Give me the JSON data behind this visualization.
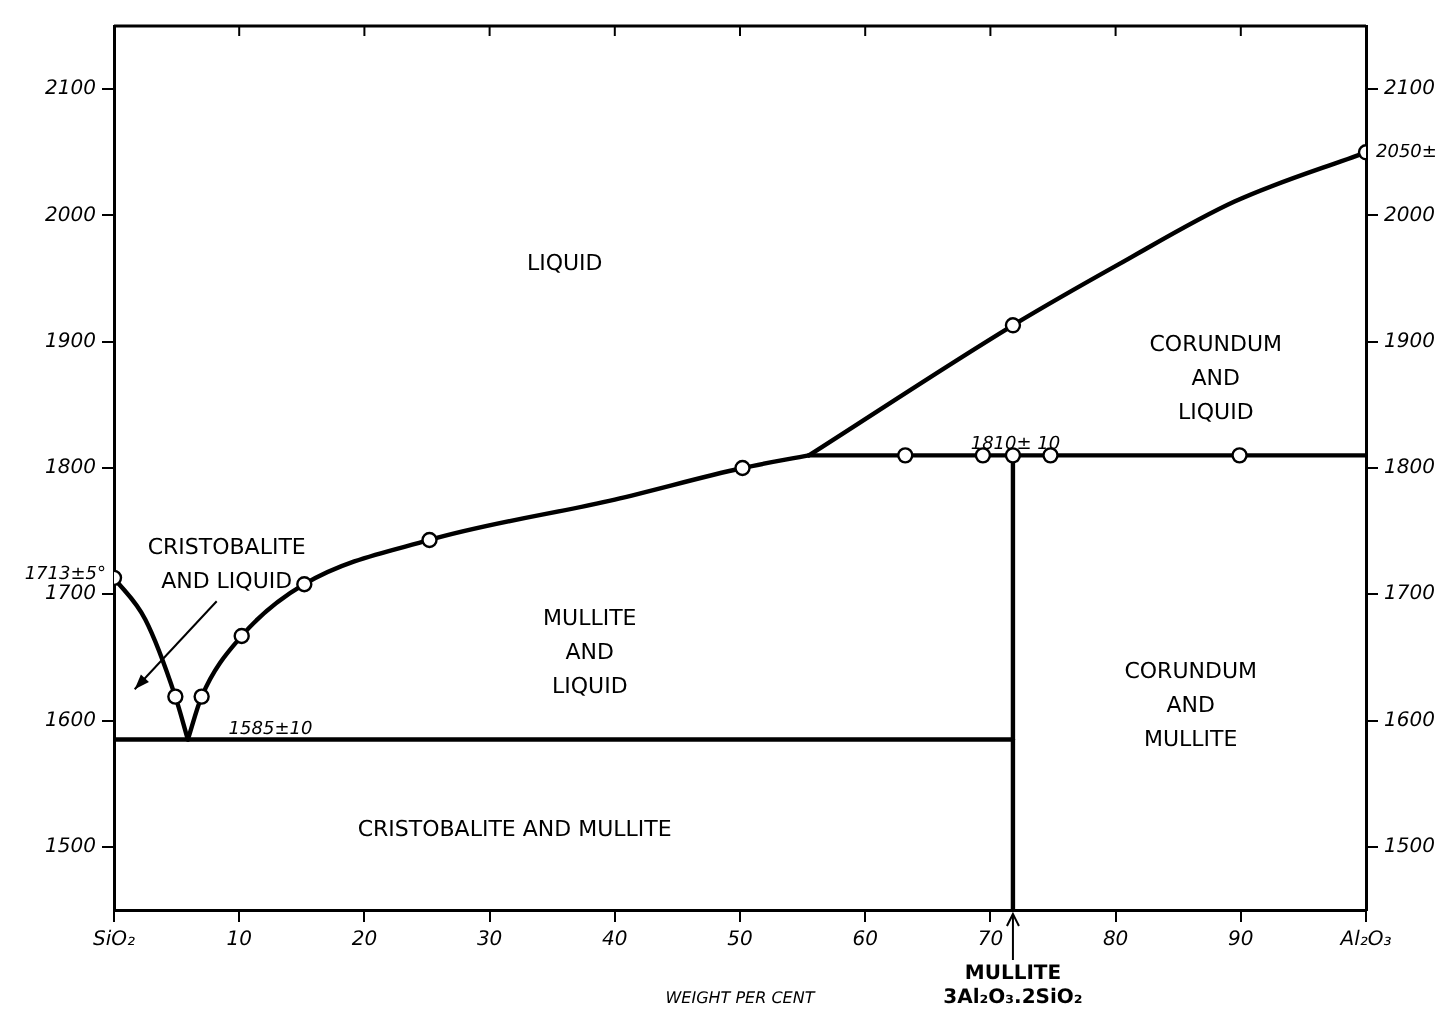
{
  "chart_data": {
    "type": "line",
    "xlabel": "WEIGHT PER CENT",
    "xlim": [
      0,
      100
    ],
    "xticks": [
      {
        "value": 0,
        "label": "SiO₂"
      },
      10,
      20,
      30,
      40,
      50,
      60,
      70,
      80,
      90,
      {
        "value": 100,
        "label": "Al₂O₃"
      }
    ],
    "ylim": [
      1450,
      2150
    ],
    "yticks": [
      1500,
      1600,
      1700,
      1800,
      1900,
      2000,
      2100
    ],
    "y2lim": [
      1450,
      2150
    ],
    "y2ticks": [
      1500,
      1600,
      1700,
      1800,
      1900,
      2000,
      2100
    ],
    "grid": false,
    "legend": false,
    "line_style": "solid",
    "series": [
      {
        "color": "#000000",
        "marker": "none",
        "x": [
          0,
          2.5,
          4.9,
          5.9
        ],
        "values": [
          1713,
          1680,
          1619,
          1585
        ]
      },
      {
        "color": "#000000",
        "marker": "none",
        "x": [
          5.9,
          7,
          10.2,
          15.2,
          25.2,
          40,
          50.2,
          55.5
        ],
        "values": [
          1585,
          1619,
          1667,
          1708,
          1743,
          1775,
          1800,
          1810
        ]
      },
      {
        "color": "#000000",
        "marker": "none",
        "x": [
          55.5,
          71.8,
          80.2,
          89.5,
          100
        ],
        "values": [
          1810,
          1913,
          1961,
          2011,
          2050
        ]
      },
      {
        "color": "#000000",
        "marker": "none",
        "x": [
          55.5,
          100
        ],
        "values": [
          1810,
          1810
        ]
      },
      {
        "color": "#000000",
        "marker": "none",
        "x": [
          0,
          71.8
        ],
        "values": [
          1585,
          1585
        ]
      },
      {
        "color": "#000000",
        "marker": "none",
        "x": [
          71.8,
          71.8
        ],
        "values": [
          1810,
          1450
        ]
      },
      {
        "type": "scatter",
        "color": "#000000",
        "marker": "circle",
        "x": [
          0,
          4.9,
          7,
          10.2,
          15.2,
          25.2,
          50.2,
          63.2,
          69.4,
          71.8,
          74.8,
          89.9,
          71.8,
          100
        ],
        "values": [
          1713,
          1619,
          1619,
          1667,
          1708,
          1743,
          1800,
          1810,
          1810,
          1810,
          1810,
          1810,
          1913,
          2050
        ]
      }
    ],
    "annotations": [
      "LIQUID",
      "CORUNDUM\nAND\nLIQUID",
      "CRISTOBALITE\nAND LIQUID",
      "MULLITE\nAND\nLIQUID",
      "CORUNDUM\nAND\nMULLITE",
      "CRISTOBALITE AND MULLITE",
      {
        "text": "1713±5°",
        "x": 0,
        "y": 1713
      },
      {
        "text": "1585±10",
        "x": 12.5,
        "y": 1593
      },
      {
        "text": "1810± 10",
        "x": 72,
        "y": 1819
      },
      {
        "text": "2050±",
        "x": 100,
        "y": 2050
      },
      {
        "text": "MULLITE\n3Al₂O₃.2SiO₂",
        "x": 71.8
      }
    ]
  }
}
